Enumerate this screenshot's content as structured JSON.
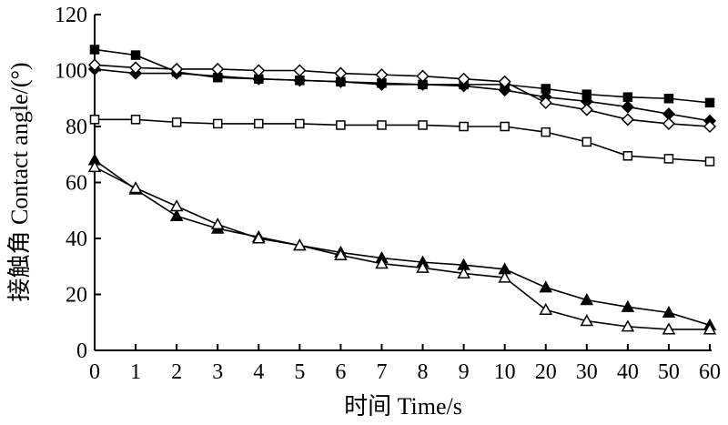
{
  "chart_data": {
    "type": "line",
    "title": "",
    "xlabel": "时间 Time/s",
    "ylabel": "接触角 Contact angle/(°)",
    "x": [
      "0",
      "1",
      "2",
      "3",
      "4",
      "5",
      "6",
      "7",
      "8",
      "9",
      "10",
      "20",
      "30",
      "40",
      "50",
      "60"
    ],
    "ylim": [
      0,
      120
    ],
    "yticks": [
      "0",
      "20",
      "40",
      "60",
      "80",
      "100",
      "120"
    ],
    "grid": false,
    "legend": "none",
    "series": [
      {
        "marker": "filled-square",
        "values": [
          107.5,
          105.5,
          99.5,
          97.5,
          97,
          96.5,
          96,
          95.5,
          95,
          95,
          95,
          93.5,
          91.5,
          90.5,
          90,
          88.5
        ]
      },
      {
        "marker": "filled-diamond",
        "values": [
          100.5,
          99,
          99,
          98,
          97,
          96.5,
          96,
          95,
          95,
          94.5,
          93,
          90.5,
          89,
          87,
          84.5,
          82
        ]
      },
      {
        "marker": "open-diamond",
        "values": [
          102,
          101,
          100.5,
          100.5,
          100,
          100,
          99,
          98.5,
          98,
          97,
          96,
          88.5,
          86,
          82.5,
          81,
          80
        ]
      },
      {
        "marker": "open-square",
        "values": [
          82.5,
          82.5,
          81.5,
          81,
          81,
          81,
          80.5,
          80.5,
          80.5,
          80,
          80,
          78,
          74.5,
          69.5,
          68.5,
          67.5
        ]
      },
      {
        "marker": "filled-triangle",
        "values": [
          68,
          57.5,
          48,
          43.5,
          40.5,
          37.5,
          35,
          33,
          31.5,
          30.5,
          29,
          22.5,
          18,
          15.5,
          13.5,
          9
        ]
      },
      {
        "marker": "open-triangle",
        "values": [
          65.5,
          58,
          51.5,
          45,
          40,
          37.5,
          34,
          31,
          29.5,
          27.5,
          26,
          14.5,
          10.5,
          8.5,
          7.5,
          7.5
        ]
      }
    ]
  }
}
